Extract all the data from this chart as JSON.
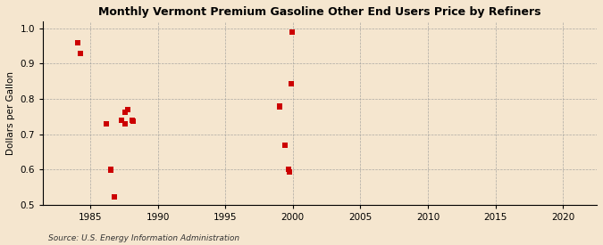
{
  "title": "Monthly Vermont Premium Gasoline Other End Users Price by Refiners",
  "ylabel": "Dollars per Gallon",
  "source": "Source: U.S. Energy Information Administration",
  "xlim": [
    1981.5,
    2022.5
  ],
  "ylim": [
    0.5,
    1.02
  ],
  "xticks": [
    1985,
    1990,
    1995,
    2000,
    2005,
    2010,
    2015,
    2020
  ],
  "yticks": [
    0.5,
    0.6,
    0.7,
    0.8,
    0.9,
    1.0
  ],
  "background_color": "#f5e6cf",
  "plot_bg_color": "#f5e6cf",
  "scatter_color": "#cc0000",
  "marker_size": 18,
  "data_x": [
    1984.1,
    1984.3,
    1986.2,
    1986.5,
    1986.55,
    1986.8,
    1987.3,
    1987.55,
    1987.6,
    1987.8,
    1988.1,
    1988.15,
    1999.0,
    1999.05,
    1999.4,
    1999.7,
    1999.75,
    1999.85,
    1999.95
  ],
  "data_y": [
    0.96,
    0.93,
    0.73,
    0.6,
    0.597,
    0.522,
    0.74,
    0.73,
    0.762,
    0.77,
    0.74,
    0.736,
    0.78,
    0.777,
    0.668,
    0.6,
    0.593,
    0.843,
    0.99
  ]
}
